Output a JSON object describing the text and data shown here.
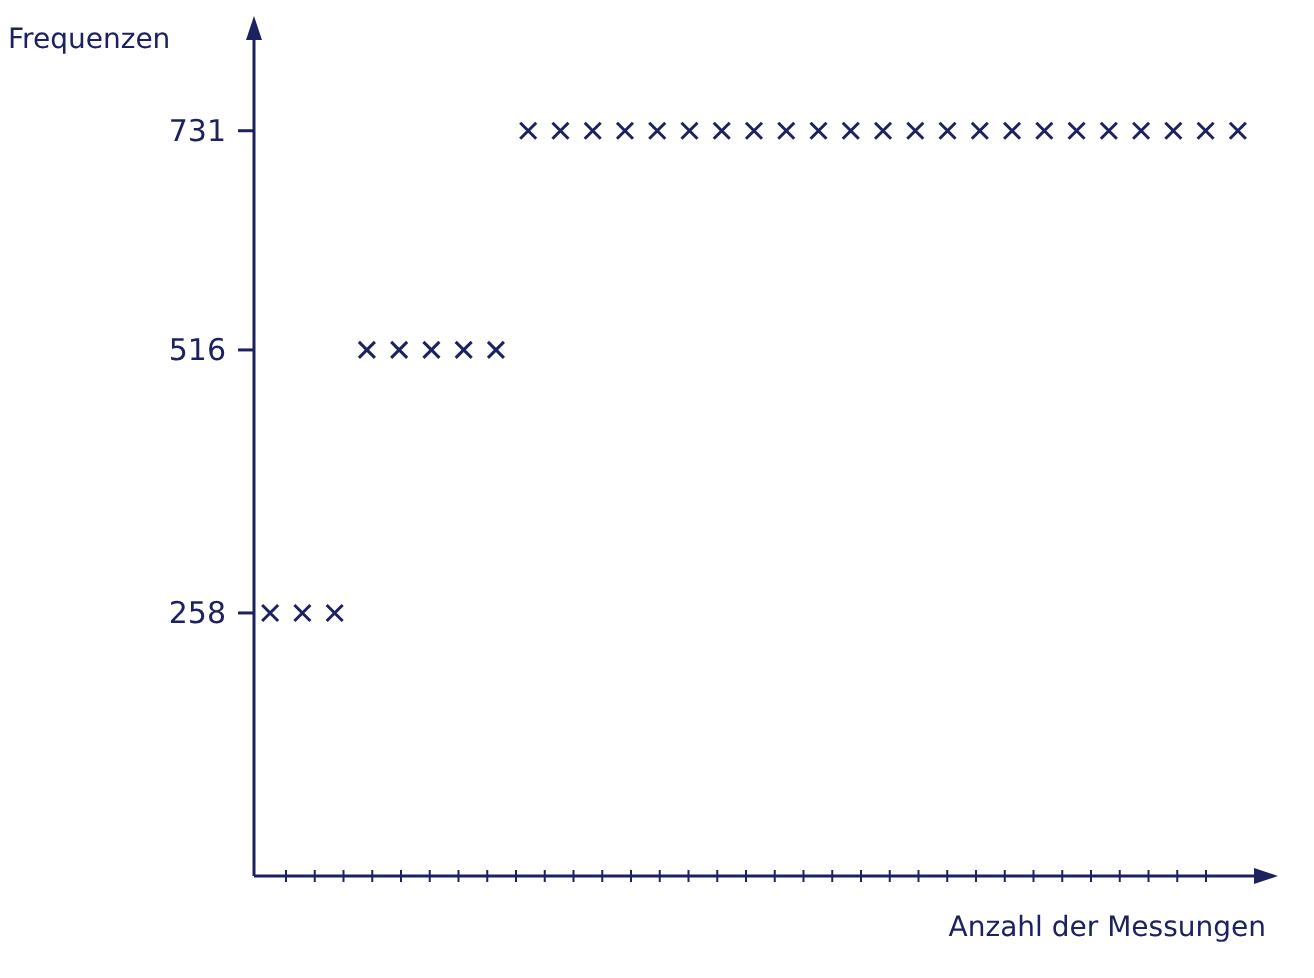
{
  "chart_data": {
    "type": "scatter",
    "ylabel": "Frequenzen",
    "xlabel": "Anzahl der Messungen",
    "categories": [
      null,
      null,
      null,
      null,
      null,
      null,
      null,
      null,
      null,
      null,
      null,
      null,
      null,
      null,
      null,
      null,
      null,
      null,
      null,
      null,
      null,
      null,
      null,
      null,
      null,
      null,
      null,
      null,
      null,
      null,
      null
    ],
    "series": [
      {
        "color": "#1c2260",
        "values": [
          258,
          258,
          258,
          516,
          516,
          516,
          516,
          516,
          731,
          731,
          731,
          731,
          731,
          731,
          731,
          731,
          731,
          731,
          731,
          731,
          731,
          731,
          731,
          731,
          731,
          731,
          731,
          731,
          731,
          731,
          731
        ]
      }
    ],
    "ylim": [
      0,
      820
    ],
    "yticks": [
      258,
      516,
      731
    ],
    "marker": "cross",
    "grid": false
  }
}
